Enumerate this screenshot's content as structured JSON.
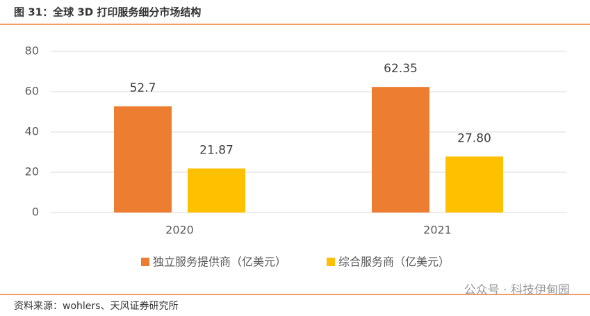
{
  "chart_data": {
    "type": "bar",
    "title": "图 31：全球 3D 打印服务细分市场结构",
    "categories": [
      "2020",
      "2021"
    ],
    "series": [
      {
        "name": "独立服务提供商（亿美元）",
        "color": "#ed7d31",
        "values": [
          52.7,
          62.35
        ],
        "value_labels": [
          "52.7",
          "62.35"
        ]
      },
      {
        "name": "综合服务商（亿美元）",
        "color": "#ffc000",
        "values": [
          21.87,
          27.8
        ],
        "value_labels": [
          "21.87",
          "27.80"
        ]
      }
    ],
    "ylim": [
      0,
      80
    ],
    "yticks": [
      0,
      20,
      40,
      60,
      80
    ],
    "grid": true,
    "legend": "bottom",
    "source": "资料来源：wohlers、天风证券研究所",
    "watermark": "公众号 · 科技伊甸园"
  }
}
